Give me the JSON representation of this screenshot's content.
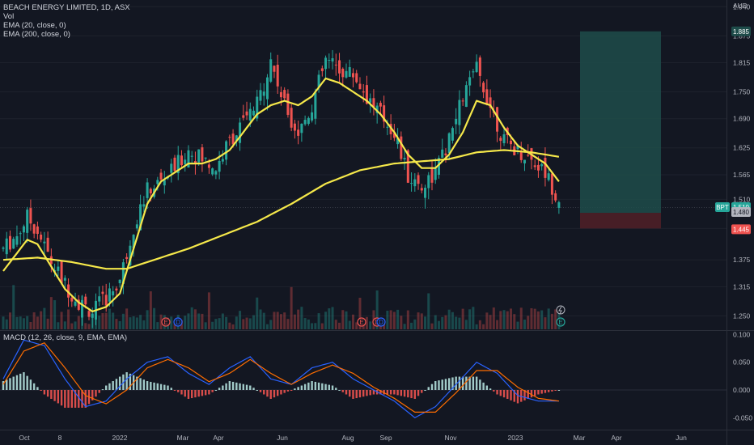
{
  "header": {
    "symbol_line": "BEACH ENERGY LIMITED, 1D, ASX",
    "indicators": [
      "Vol",
      "EMA (20, close, 0)",
      "EMA (200, close, 0)"
    ],
    "currency": "AUD"
  },
  "macd_panel": {
    "label": "MACD (12, 26, close, 9, EMA, EMA)"
  },
  "price_tags": {
    "symbol": "BPT",
    "current": "1.510",
    "target": "1.885",
    "entry": "1.480",
    "stop": "1.445"
  },
  "colors": {
    "background": "#131722",
    "up": "#26a69a",
    "down": "#ef5350",
    "ema": "#f5e84a",
    "macd_line": "#2962ff",
    "signal_line": "#ff6d00",
    "target_zone": "#1e4c4a",
    "stop_zone": "#4a1f27"
  },
  "chart_data": [
    {
      "type": "candlestick",
      "title": "BEACH ENERGY LIMITED, 1D, ASX",
      "xlabel": "",
      "ylabel": "AUD",
      "x_ticks": [
        "Oct",
        "8",
        "2022",
        "Mar",
        "Apr",
        "Jun",
        "Aug",
        "Sep",
        "Nov",
        "2023",
        "Mar",
        "Apr",
        "Jun"
      ],
      "y_ticks": [
        1.25,
        1.315,
        1.375,
        1.445,
        1.51,
        1.565,
        1.625,
        1.69,
        1.75,
        1.815,
        1.875,
        1.94
      ],
      "ylim": [
        1.22,
        1.955
      ],
      "close_path": [
        [
          0,
          1.4
        ],
        [
          4,
          1.43
        ],
        [
          7,
          1.47
        ],
        [
          10,
          1.44
        ],
        [
          14,
          1.37
        ],
        [
          18,
          1.32
        ],
        [
          22,
          1.28
        ],
        [
          26,
          1.26
        ],
        [
          30,
          1.29
        ],
        [
          34,
          1.33
        ],
        [
          38,
          1.45
        ],
        [
          42,
          1.53
        ],
        [
          46,
          1.55
        ],
        [
          50,
          1.58
        ],
        [
          54,
          1.62
        ],
        [
          58,
          1.6
        ],
        [
          62,
          1.58
        ],
        [
          66,
          1.64
        ],
        [
          70,
          1.68
        ],
        [
          74,
          1.72
        ],
        [
          78,
          1.82
        ],
        [
          82,
          1.72
        ],
        [
          86,
          1.66
        ],
        [
          90,
          1.72
        ],
        [
          94,
          1.82
        ],
        [
          98,
          1.8
        ],
        [
          102,
          1.79
        ],
        [
          106,
          1.74
        ],
        [
          110,
          1.7
        ],
        [
          114,
          1.66
        ],
        [
          118,
          1.56
        ],
        [
          122,
          1.54
        ],
        [
          126,
          1.57
        ],
        [
          130,
          1.64
        ],
        [
          134,
          1.74
        ],
        [
          138,
          1.8
        ],
        [
          142,
          1.72
        ],
        [
          146,
          1.64
        ],
        [
          150,
          1.62
        ],
        [
          154,
          1.6
        ],
        [
          158,
          1.57
        ],
        [
          162,
          1.51
        ]
      ],
      "series": [
        {
          "name": "EMA (20, close, 0)",
          "values": [
            [
              0,
              1.35
            ],
            [
              4,
              1.39
            ],
            [
              7,
              1.42
            ],
            [
              10,
              1.41
            ],
            [
              14,
              1.36
            ],
            [
              18,
              1.31
            ],
            [
              22,
              1.28
            ],
            [
              26,
              1.26
            ],
            [
              30,
              1.27
            ],
            [
              34,
              1.3
            ],
            [
              38,
              1.4
            ],
            [
              42,
              1.5
            ],
            [
              46,
              1.55
            ],
            [
              50,
              1.57
            ],
            [
              54,
              1.59
            ],
            [
              58,
              1.59
            ],
            [
              62,
              1.6
            ],
            [
              66,
              1.62
            ],
            [
              70,
              1.66
            ],
            [
              74,
              1.7
            ],
            [
              78,
              1.72
            ],
            [
              82,
              1.73
            ],
            [
              86,
              1.72
            ],
            [
              90,
              1.74
            ],
            [
              94,
              1.78
            ],
            [
              98,
              1.77
            ],
            [
              102,
              1.75
            ],
            [
              106,
              1.73
            ],
            [
              110,
              1.7
            ],
            [
              114,
              1.66
            ],
            [
              118,
              1.61
            ],
            [
              122,
              1.58
            ],
            [
              126,
              1.58
            ],
            [
              130,
              1.61
            ],
            [
              134,
              1.66
            ],
            [
              138,
              1.73
            ],
            [
              142,
              1.72
            ],
            [
              146,
              1.67
            ],
            [
              150,
              1.63
            ],
            [
              154,
              1.61
            ],
            [
              158,
              1.59
            ],
            [
              162,
              1.55
            ]
          ]
        },
        {
          "name": "EMA (200, close, 0)",
          "values": [
            [
              0,
              1.375
            ],
            [
              10,
              1.38
            ],
            [
              20,
              1.37
            ],
            [
              30,
              1.355
            ],
            [
              36,
              1.355
            ],
            [
              44,
              1.375
            ],
            [
              54,
              1.4
            ],
            [
              64,
              1.43
            ],
            [
              74,
              1.46
            ],
            [
              84,
              1.5
            ],
            [
              94,
              1.545
            ],
            [
              104,
              1.575
            ],
            [
              114,
              1.59
            ],
            [
              122,
              1.595
            ],
            [
              130,
              1.6
            ],
            [
              138,
              1.615
            ],
            [
              146,
              1.62
            ],
            [
              154,
              1.615
            ],
            [
              162,
              1.605
            ]
          ]
        }
      ],
      "position_tool": {
        "target": 1.885,
        "entry": 1.48,
        "stop": 1.445
      }
    },
    {
      "type": "bar",
      "title": "Vol"
    },
    {
      "type": "bar",
      "title": "MACD (12, 26, close, 9, EMA, EMA)",
      "y_ticks": [
        0.1,
        0.05,
        0.0,
        -0.05
      ],
      "ylim": [
        -0.07,
        0.105
      ],
      "series": [
        {
          "name": "MACD",
          "values": [
            [
              0,
              0.02
            ],
            [
              6,
              0.09
            ],
            [
              12,
              0.08
            ],
            [
              18,
              0.02
            ],
            [
              24,
              -0.03
            ],
            [
              30,
              -0.02
            ],
            [
              36,
              0.02
            ],
            [
              42,
              0.05
            ],
            [
              48,
              0.06
            ],
            [
              54,
              0.03
            ],
            [
              60,
              0.01
            ],
            [
              66,
              0.04
            ],
            [
              72,
              0.06
            ],
            [
              78,
              0.02
            ],
            [
              84,
              0.01
            ],
            [
              90,
              0.04
            ],
            [
              96,
              0.05
            ],
            [
              102,
              0.02
            ],
            [
              108,
              0.0
            ],
            [
              114,
              -0.02
            ],
            [
              120,
              -0.05
            ],
            [
              126,
              -0.03
            ],
            [
              132,
              0.01
            ],
            [
              138,
              0.05
            ],
            [
              144,
              0.03
            ],
            [
              150,
              -0.01
            ],
            [
              156,
              -0.02
            ],
            [
              162,
              -0.02
            ]
          ]
        },
        {
          "name": "Signal",
          "values": [
            [
              0,
              0.01
            ],
            [
              6,
              0.07
            ],
            [
              12,
              0.085
            ],
            [
              18,
              0.04
            ],
            [
              24,
              -0.01
            ],
            [
              30,
              -0.025
            ],
            [
              36,
              0.0
            ],
            [
              42,
              0.04
            ],
            [
              48,
              0.055
            ],
            [
              54,
              0.04
            ],
            [
              60,
              0.015
            ],
            [
              66,
              0.03
            ],
            [
              72,
              0.055
            ],
            [
              78,
              0.03
            ],
            [
              84,
              0.01
            ],
            [
              90,
              0.03
            ],
            [
              96,
              0.045
            ],
            [
              102,
              0.03
            ],
            [
              108,
              0.005
            ],
            [
              114,
              -0.015
            ],
            [
              120,
              -0.04
            ],
            [
              126,
              -0.04
            ],
            [
              132,
              -0.005
            ],
            [
              138,
              0.035
            ],
            [
              144,
              0.035
            ],
            [
              150,
              0.005
            ],
            [
              156,
              -0.015
            ],
            [
              162,
              -0.02
            ]
          ]
        }
      ]
    }
  ]
}
